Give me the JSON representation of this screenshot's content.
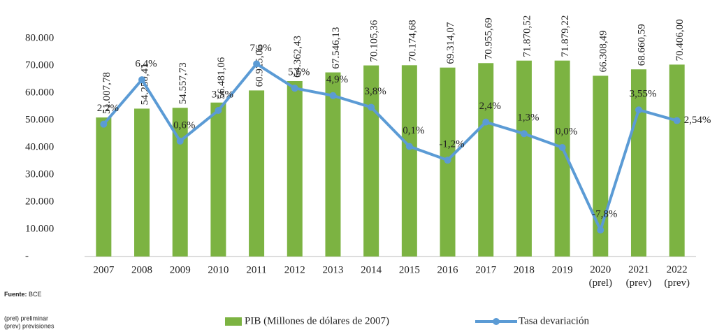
{
  "chart_data": {
    "type": "bar-line",
    "categories": [
      "2007",
      "2008",
      "2009",
      "2010",
      "2011",
      "2012",
      "2013",
      "2014",
      "2015",
      "2016",
      "2017",
      "2018",
      "2019",
      "2020\n(prel)",
      "2021\n(prev)",
      "2022\n(prev)"
    ],
    "series": [
      {
        "name": "PIB (Millones de dólares de 2007)",
        "type": "bar",
        "color": "#7cb342",
        "values": [
          51007.78,
          54250.41,
          54557.73,
          56481.06,
          60925.06,
          64362.43,
          67546.13,
          70105.36,
          70174.68,
          69314.07,
          70955.69,
          71870.52,
          71879.22,
          66308.49,
          68660.59,
          70406.0
        ],
        "value_labels": [
          "51.007,78",
          "54.250,41",
          "54.557,73",
          "56.481,06",
          "60.925,06",
          "64.362,43",
          "67.546,13",
          "70.105,36",
          "70.174,68",
          "69.314,07",
          "70.955,69",
          "71.870,52",
          "71.879,22",
          "66.308,49",
          "68.660,59",
          "70.406,00"
        ]
      },
      {
        "name": "Tasa devariación",
        "type": "line",
        "axis": "y2",
        "color": "#5b9bd5",
        "values": [
          2.2,
          6.4,
          0.6,
          3.5,
          7.9,
          5.6,
          4.9,
          3.8,
          0.1,
          -1.2,
          2.4,
          1.3,
          0.0,
          -7.8,
          3.55,
          2.54
        ],
        "value_labels": [
          "2,2%",
          "6,4%",
          "0,6%",
          "3,5%",
          "7,9%",
          "5,6%",
          "4,9%",
          "3,8%",
          "0,1%",
          "-1,2%",
          "2,4%",
          "1,3%",
          "0,0%",
          "-7,8%",
          "3,55%",
          "2,54%"
        ]
      }
    ],
    "ylim": [
      0,
      80000
    ],
    "yticks": [
      {
        "value": 0,
        "label": "-"
      },
      {
        "value": 10000,
        "label": "10.000"
      },
      {
        "value": 20000,
        "label": "20.000"
      },
      {
        "value": 30000,
        "label": "30.000"
      },
      {
        "value": 40000,
        "label": "40.000"
      },
      {
        "value": 50000,
        "label": "50.000"
      },
      {
        "value": 60000,
        "label": "60.000"
      },
      {
        "value": 70000,
        "label": "70.000"
      },
      {
        "value": 80000,
        "label": "80.000"
      }
    ],
    "y2lim": [
      -10.3,
      10.3
    ],
    "grid": false,
    "legend": "bottom",
    "footnote": {
      "source_label": "Fuente:",
      "source": "BCE",
      "notes": [
        "(prel) preliminar",
        "(prev) previsiones"
      ]
    }
  }
}
